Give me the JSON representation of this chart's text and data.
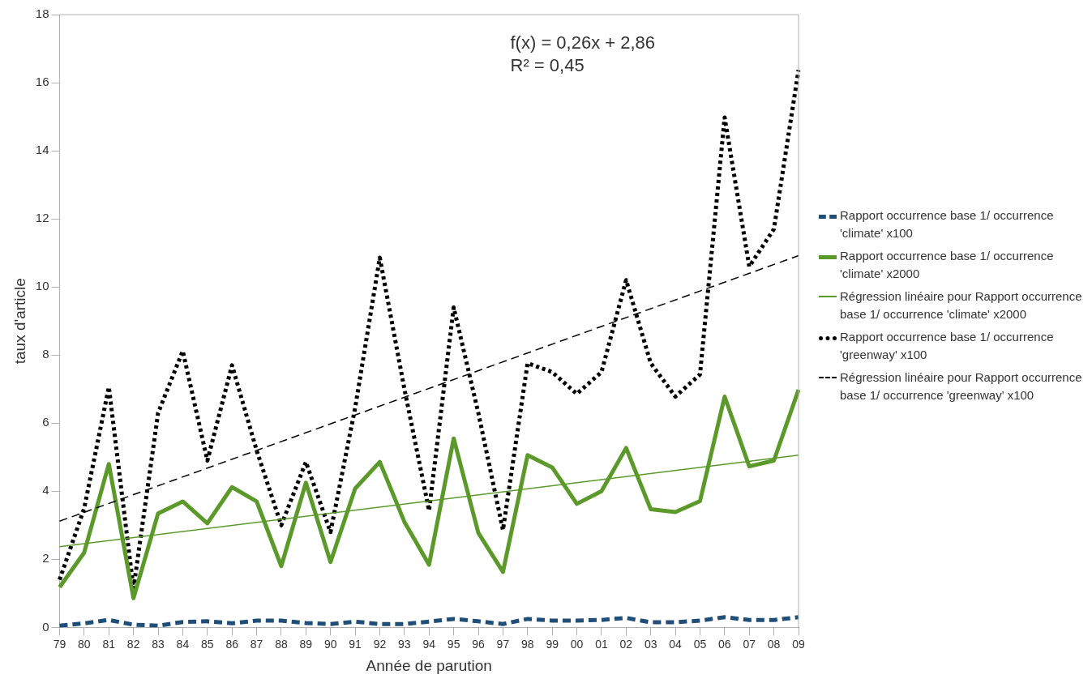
{
  "chart_data": {
    "type": "line",
    "xlabel": "Année de parution",
    "ylabel": "taux d'article",
    "categories": [
      "79",
      "80",
      "81",
      "82",
      "83",
      "84",
      "85",
      "86",
      "87",
      "88",
      "89",
      "90",
      "91",
      "92",
      "93",
      "94",
      "95",
      "96",
      "97",
      "98",
      "99",
      "00",
      "01",
      "02",
      "03",
      "04",
      "05",
      "06",
      "07",
      "08",
      "09"
    ],
    "series": [
      {
        "name": "Rapport occurrence base 1/ occurrence 'climate' x100",
        "color": "#1f4e79",
        "line_style": "dashed",
        "values": [
          0.05,
          0.12,
          0.22,
          0.08,
          0.05,
          0.16,
          0.18,
          0.12,
          0.2,
          0.2,
          0.13,
          0.1,
          0.17,
          0.1,
          0.1,
          0.17,
          0.25,
          0.18,
          0.1,
          0.25,
          0.2,
          0.2,
          0.22,
          0.28,
          0.15,
          0.15,
          0.2,
          0.3,
          0.22,
          0.22,
          0.3
        ]
      },
      {
        "name": "Rapport occurrence base 1/ occurrence 'climate' x2000",
        "color": "#5b9a2a",
        "line_style": "solid",
        "values": [
          1.18,
          2.2,
          4.8,
          0.86,
          3.35,
          3.7,
          3.06,
          4.12,
          3.7,
          1.8,
          4.25,
          1.92,
          4.08,
          4.86,
          3.1,
          1.84,
          5.55,
          2.78,
          1.63,
          5.06,
          4.7,
          3.63,
          4.0,
          5.27,
          3.47,
          3.39,
          3.71,
          6.78,
          4.73,
          4.9,
          6.98
        ]
      },
      {
        "name": "Régression linéaire pour Rapport occurrence base 1/ occurrence 'climate' x2000",
        "color": "#5b9a2a",
        "line_style": "solid",
        "x": [
          "79",
          "09"
        ],
        "values": [
          2.37,
          5.06
        ]
      },
      {
        "name": "Rapport occurrence base 1/ occurrence 'greenway' x100",
        "color": "#000000",
        "line_style": "dotted",
        "values": [
          1.4,
          3.5,
          7.06,
          1.14,
          6.3,
          8.12,
          4.9,
          7.7,
          5.2,
          3.0,
          4.86,
          2.8,
          6.45,
          10.86,
          7.0,
          3.43,
          9.4,
          6.3,
          2.86,
          7.76,
          7.5,
          6.86,
          7.5,
          10.2,
          7.76,
          6.78,
          7.43,
          14.98,
          10.6,
          11.7,
          16.37
        ]
      },
      {
        "name": "Régression linéaire pour Rapport occurrence base 1/ occurrence 'greenway' x100",
        "color": "#000000",
        "line_style": "dashed",
        "x": [
          "79",
          "09"
        ],
        "values": [
          3.12,
          10.92
        ]
      }
    ],
    "ylim": [
      0,
      18
    ],
    "yticks": [
      0,
      2,
      4,
      6,
      8,
      10,
      12,
      14,
      16,
      18
    ],
    "grid": false,
    "legend": "right",
    "marker": "none",
    "annotations": [
      "f(x) = 0,26x + 2,86",
      "R² = 0,45"
    ]
  }
}
